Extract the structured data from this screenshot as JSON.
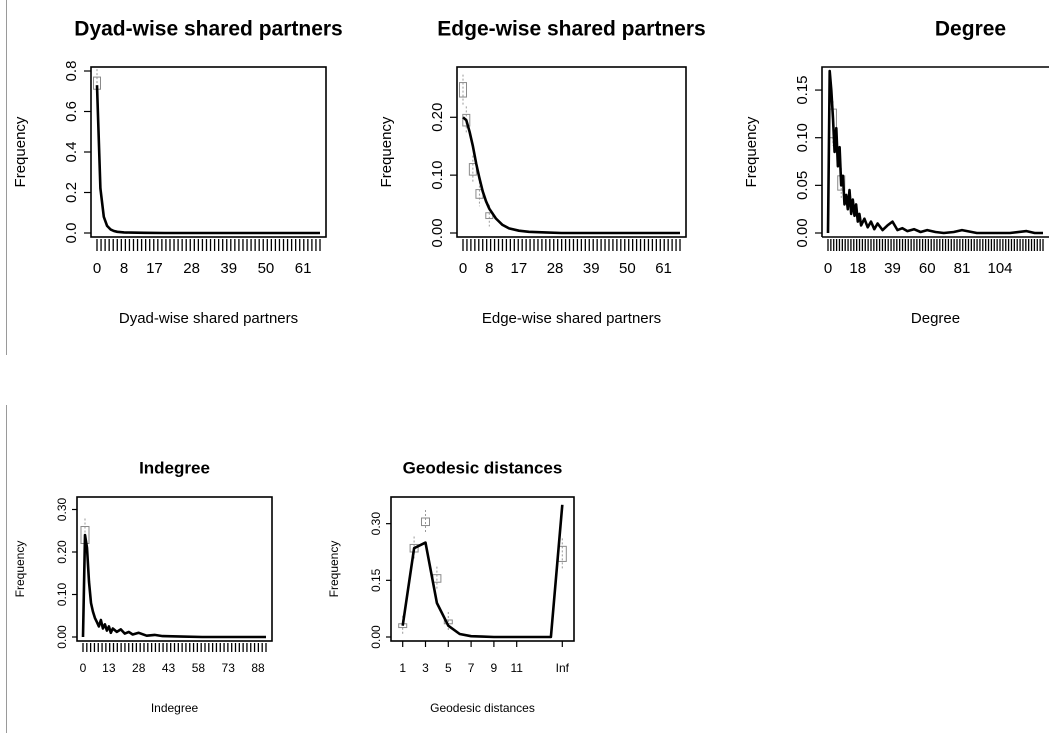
{
  "chart_data": [
    {
      "type": "line",
      "title": "Dyad-wise shared partners",
      "xlabel": "Dyad-wise shared partners",
      "ylabel": "Frequency",
      "xlim": [
        0,
        66
      ],
      "ylim": [
        0,
        0.8
      ],
      "xtick_labels": [
        "0",
        "8",
        "17",
        "28",
        "39",
        "50",
        "61"
      ],
      "ytick_labels": [
        "0.0",
        "0.2",
        "0.4",
        "0.6",
        "0.8"
      ],
      "ytick_values": [
        0,
        0.2,
        0.4,
        0.6,
        0.8
      ],
      "series": [
        {
          "x": [
            0,
            1,
            2,
            3,
            4,
            5,
            6,
            8,
            10,
            14,
            20,
            30,
            40,
            50,
            61,
            66
          ],
          "y": [
            0.73,
            0.22,
            0.08,
            0.035,
            0.018,
            0.01,
            0.006,
            0.003,
            0.002,
            0.001,
            0,
            0,
            0,
            0,
            0,
            0
          ]
        }
      ],
      "boxes": [
        {
          "x": 0,
          "lo": 0.71,
          "hi": 0.77
        }
      ]
    },
    {
      "type": "line",
      "title": "Edge-wise shared partners",
      "xlabel": "Edge-wise shared partners",
      "ylabel": "Frequency",
      "xlim": [
        0,
        66
      ],
      "ylim": [
        0,
        0.28
      ],
      "xtick_labels": [
        "0",
        "8",
        "17",
        "28",
        "39",
        "50",
        "61"
      ],
      "ytick_labels": [
        "0.00",
        "0.10",
        "0.20"
      ],
      "ytick_values": [
        0,
        0.1,
        0.2
      ],
      "series": [
        {
          "x": [
            0,
            1,
            2,
            3,
            4,
            5,
            6,
            7,
            8,
            10,
            12,
            14,
            17,
            20,
            25,
            30,
            40,
            50,
            61,
            66
          ],
          "y": [
            0.2,
            0.195,
            0.175,
            0.15,
            0.12,
            0.095,
            0.072,
            0.055,
            0.042,
            0.025,
            0.014,
            0.008,
            0.004,
            0.002,
            0.001,
            0,
            0,
            0,
            0,
            0
          ]
        }
      ],
      "boxes": [
        {
          "x": 0,
          "lo": 0.235,
          "hi": 0.26
        },
        {
          "x": 1,
          "lo": 0.185,
          "hi": 0.205
        },
        {
          "x": 3,
          "lo": 0.1,
          "hi": 0.12
        },
        {
          "x": 5,
          "lo": 0.06,
          "hi": 0.075
        },
        {
          "x": 8,
          "lo": 0.025,
          "hi": 0.035
        }
      ]
    },
    {
      "type": "line",
      "title": "Degree",
      "xlabel": "Degree",
      "ylabel": "Frequency",
      "xlim": [
        0,
        130
      ],
      "ylim": [
        0,
        0.17
      ],
      "xtick_labels": [
        "0",
        "18",
        "39",
        "60",
        "81",
        "104"
      ],
      "xtick_values": [
        0,
        18,
        39,
        60,
        81,
        104
      ],
      "ytick_labels": [
        "0.00",
        "0.05",
        "0.10",
        "0.15"
      ],
      "ytick_values": [
        0,
        0.05,
        0.1,
        0.15
      ],
      "series": [
        {
          "x": [
            0,
            1,
            2,
            3,
            4,
            5,
            6,
            7,
            8,
            9,
            10,
            11,
            12,
            13,
            14,
            15,
            16,
            17,
            18,
            19,
            20,
            22,
            24,
            26,
            28,
            30,
            33,
            36,
            39,
            42,
            45,
            48,
            52,
            56,
            60,
            65,
            70,
            76,
            81,
            90,
            100,
            110,
            120,
            125,
            130
          ],
          "y": [
            0,
            0.17,
            0.15,
            0.12,
            0.085,
            0.11,
            0.07,
            0.09,
            0.05,
            0.06,
            0.03,
            0.04,
            0.025,
            0.045,
            0.02,
            0.035,
            0.018,
            0.03,
            0.012,
            0.02,
            0.008,
            0.015,
            0.006,
            0.012,
            0.004,
            0.01,
            0.003,
            0.008,
            0.012,
            0.003,
            0.005,
            0.002,
            0.004,
            0.001,
            0.003,
            0.001,
            0,
            0.001,
            0.003,
            0,
            0,
            0,
            0.002,
            0,
            0
          ]
        }
      ],
      "boxes": [
        {
          "x": 3,
          "lo": 0.1,
          "hi": 0.13
        },
        {
          "x": 8,
          "lo": 0.045,
          "hi": 0.06
        }
      ]
    },
    {
      "type": "line",
      "title": "Indegree",
      "xlabel": "Indegree",
      "ylabel": "Frequency",
      "xlim": [
        0,
        92
      ],
      "ylim": [
        0,
        0.32
      ],
      "xtick_labels": [
        "0",
        "13",
        "28",
        "43",
        "58",
        "73",
        "88"
      ],
      "xtick_values": [
        0,
        13,
        28,
        43,
        58,
        73,
        88
      ],
      "ytick_labels": [
        "0.00",
        "0.10",
        "0.20",
        "0.30"
      ],
      "ytick_values": [
        0,
        0.1,
        0.2,
        0.3
      ],
      "series": [
        {
          "x": [
            0,
            1,
            2,
            3,
            4,
            5,
            6,
            7,
            8,
            9,
            10,
            11,
            12,
            13,
            14,
            15,
            17,
            19,
            21,
            23,
            25,
            28,
            32,
            36,
            40,
            50,
            60,
            70,
            80,
            92
          ],
          "y": [
            0,
            0.24,
            0.21,
            0.13,
            0.08,
            0.06,
            0.045,
            0.035,
            0.025,
            0.04,
            0.02,
            0.03,
            0.015,
            0.025,
            0.01,
            0.02,
            0.012,
            0.018,
            0.008,
            0.012,
            0.006,
            0.01,
            0.003,
            0.005,
            0.002,
            0.001,
            0,
            0,
            0,
            0
          ]
        }
      ],
      "boxes": [
        {
          "x": 1,
          "lo": 0.22,
          "hi": 0.26
        }
      ]
    },
    {
      "type": "line",
      "title": "Geodesic distances",
      "xlabel": "Geodesic distances",
      "ylabel": "Frequency",
      "xlim": [
        0.5,
        15.5
      ],
      "ylim": [
        0,
        0.36
      ],
      "xtick_labels": [
        "1",
        "3",
        "5",
        "7",
        "9",
        "11",
        "Inf"
      ],
      "xtick_values": [
        1,
        3,
        5,
        7,
        9,
        11,
        15
      ],
      "ytick_labels": [
        "0.00",
        "0.15",
        "0.30"
      ],
      "ytick_values": [
        0,
        0.15,
        0.3
      ],
      "series": [
        {
          "x": [
            1,
            2,
            3,
            4,
            5,
            6,
            7,
            8,
            9,
            10,
            11,
            12,
            13,
            14,
            15
          ],
          "y": [
            0.03,
            0.235,
            0.25,
            0.09,
            0.03,
            0.008,
            0.002,
            0.001,
            0,
            0,
            0,
            0,
            0,
            0,
            0.35
          ]
        }
      ],
      "boxes": [
        {
          "x": 1,
          "lo": 0.025,
          "hi": 0.035
        },
        {
          "x": 2,
          "lo": 0.225,
          "hi": 0.245
        },
        {
          "x": 3,
          "lo": 0.295,
          "hi": 0.315
        },
        {
          "x": 4,
          "lo": 0.145,
          "hi": 0.165
        },
        {
          "x": 5,
          "lo": 0.035,
          "hi": 0.045
        },
        {
          "x": 15,
          "lo": 0.2,
          "hi": 0.24
        }
      ]
    }
  ]
}
